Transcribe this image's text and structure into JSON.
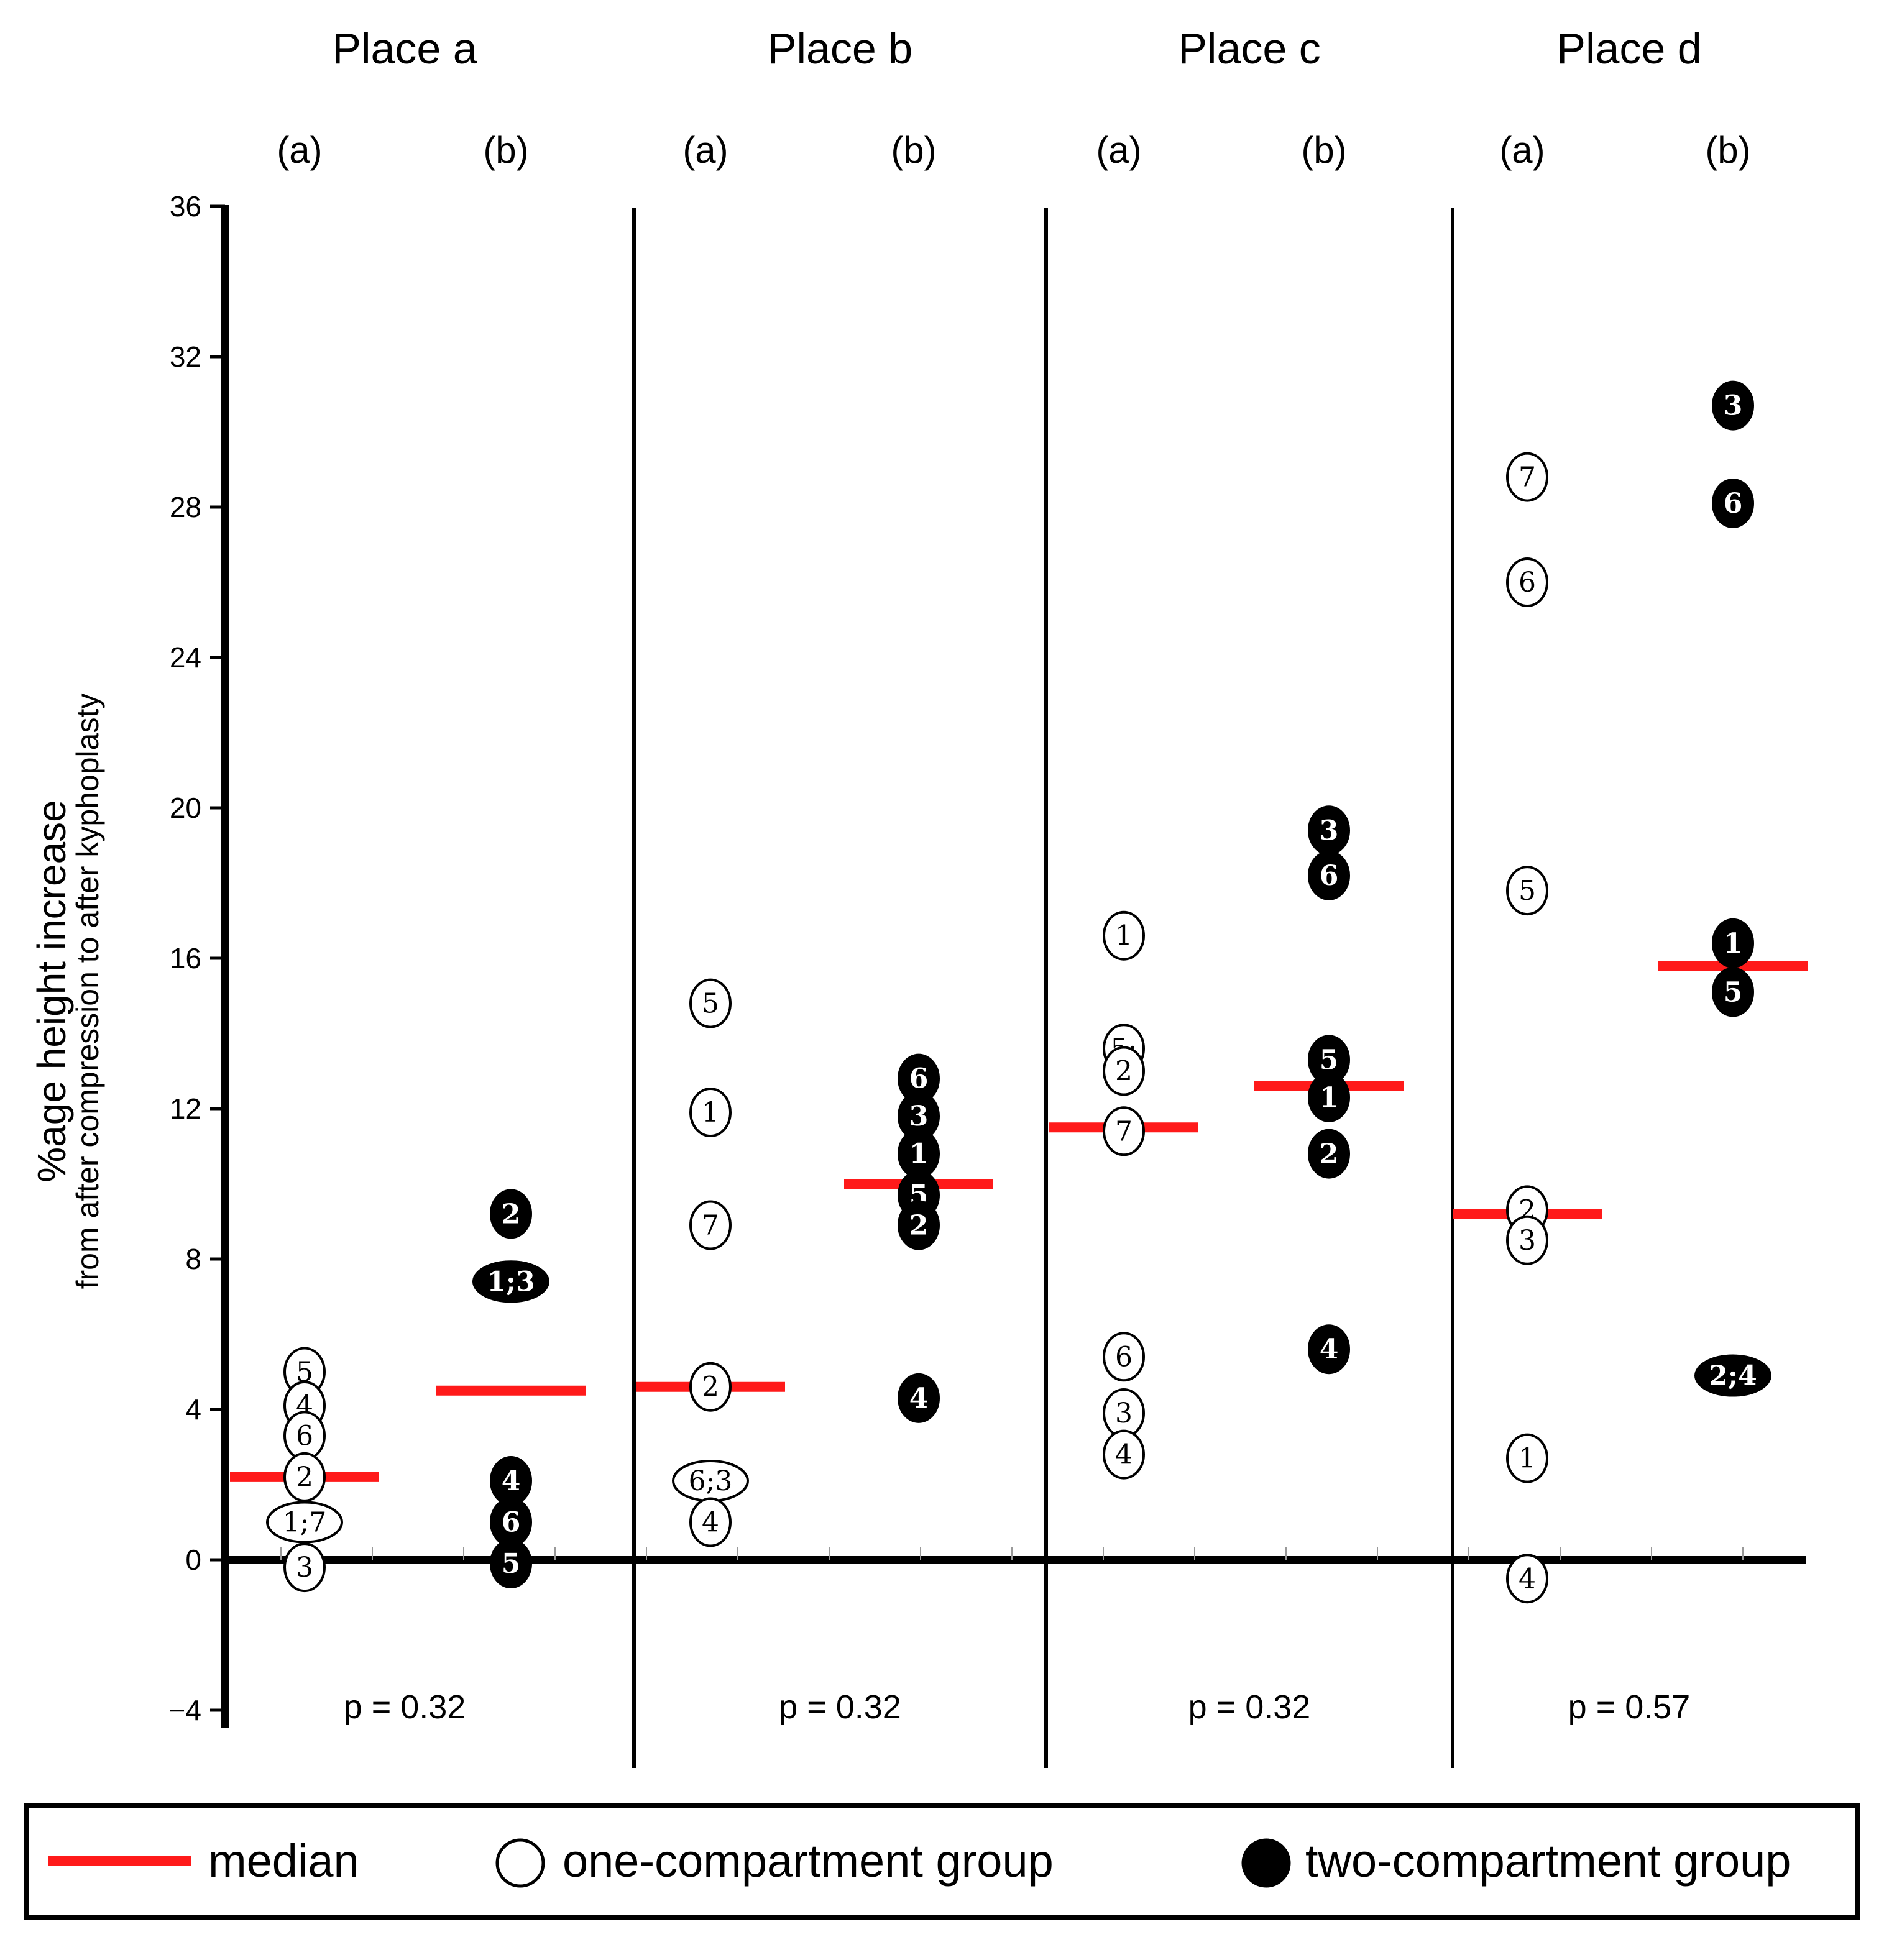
{
  "chart_data": {
    "type": "scatter",
    "ylabel": "%age height increase",
    "ylabel_sub": "from after compression to after kyphoplasty",
    "ylim": [
      -4,
      37
    ],
    "yticks": [
      -4,
      0,
      4,
      8,
      12,
      16,
      20,
      24,
      28,
      32,
      36
    ],
    "ytick_labels": [
      "−4",
      "0",
      "4",
      "8",
      "12",
      "16",
      "20",
      "24",
      "28",
      "32",
      "36"
    ],
    "panels": [
      {
        "title": "Place a",
        "p_value": "p = 0.32",
        "groups": [
          {
            "label": "(a)",
            "kind": "one",
            "median": 2.2,
            "points": [
              {
                "t": "5",
                "y": 5.0
              },
              {
                "t": "4",
                "y": 4.1
              },
              {
                "t": "6",
                "y": 3.3
              },
              {
                "t": "2",
                "y": 2.2
              },
              {
                "t": "1;7",
                "y": 1.0
              },
              {
                "t": "3",
                "y": -0.2
              }
            ]
          },
          {
            "label": "(b)",
            "kind": "two",
            "median": 4.5,
            "points": [
              {
                "t": "2",
                "y": 9.2
              },
              {
                "t": "1;3",
                "y": 7.4
              },
              {
                "t": "4",
                "y": 2.1
              },
              {
                "t": "6",
                "y": 1.0
              },
              {
                "t": "5",
                "y": -0.1
              }
            ]
          }
        ]
      },
      {
        "title": "Place b",
        "p_value": "p = 0.32",
        "groups": [
          {
            "label": "(a)",
            "kind": "one",
            "median": 4.6,
            "points": [
              {
                "t": "5",
                "y": 14.8
              },
              {
                "t": "1",
                "y": 11.9
              },
              {
                "t": "7",
                "y": 8.9
              },
              {
                "t": "2",
                "y": 4.6
              },
              {
                "t": "6;3",
                "y": 2.1
              },
              {
                "t": "4",
                "y": 1.0
              }
            ]
          },
          {
            "label": "(b)",
            "kind": "two",
            "median": 10.0,
            "points": [
              {
                "t": "6",
                "y": 12.8
              },
              {
                "t": "3",
                "y": 11.8
              },
              {
                "t": "1",
                "y": 10.8
              },
              {
                "t": "5",
                "y": 9.7
              },
              {
                "t": "2",
                "y": 8.9
              },
              {
                "t": "4",
                "y": 4.3
              }
            ]
          }
        ]
      },
      {
        "title": "Place c",
        "p_value": "p = 0.32",
        "groups": [
          {
            "label": "(a)",
            "kind": "one",
            "median": 11.5,
            "points": [
              {
                "t": "1",
                "y": 16.6
              },
              {
                "t": "5;",
                "y": 13.6
              },
              {
                "t": "2",
                "y": 13.0
              },
              {
                "t": "7",
                "y": 11.4
              },
              {
                "t": "6",
                "y": 5.4
              },
              {
                "t": "3",
                "y": 3.9
              },
              {
                "t": "4",
                "y": 2.8
              }
            ]
          },
          {
            "label": "(b)",
            "kind": "two",
            "median": 12.6,
            "points": [
              {
                "t": "3",
                "y": 19.4
              },
              {
                "t": "6",
                "y": 18.2
              },
              {
                "t": "5",
                "y": 13.3
              },
              {
                "t": "1",
                "y": 12.3
              },
              {
                "t": "2",
                "y": 10.8
              },
              {
                "t": "4",
                "y": 5.6
              }
            ]
          }
        ]
      },
      {
        "title": "Place d",
        "p_value": "p = 0.57",
        "groups": [
          {
            "label": "(a)",
            "kind": "one",
            "median": 9.2,
            "points": [
              {
                "t": "7",
                "y": 28.8
              },
              {
                "t": "6",
                "y": 26.0
              },
              {
                "t": "5",
                "y": 17.8
              },
              {
                "t": "2",
                "y": 9.3
              },
              {
                "t": "3",
                "y": 8.5
              },
              {
                "t": "1",
                "y": 2.7
              },
              {
                "t": "4",
                "y": -0.5
              }
            ]
          },
          {
            "label": "(b)",
            "kind": "two",
            "median": 15.8,
            "points": [
              {
                "t": "3",
                "y": 30.7
              },
              {
                "t": "6",
                "y": 28.1
              },
              {
                "t": "1",
                "y": 16.4
              },
              {
                "t": "5",
                "y": 15.1
              },
              {
                "t": "2;4",
                "y": 4.9
              }
            ]
          }
        ]
      }
    ],
    "legend": {
      "median": "median",
      "one": "one-compartment group",
      "two": "two-compartment group"
    },
    "colors": {
      "median": "#ff1a1a",
      "two_fill": "#000000",
      "one_fill": "#ffffff",
      "axis": "#000000"
    }
  }
}
